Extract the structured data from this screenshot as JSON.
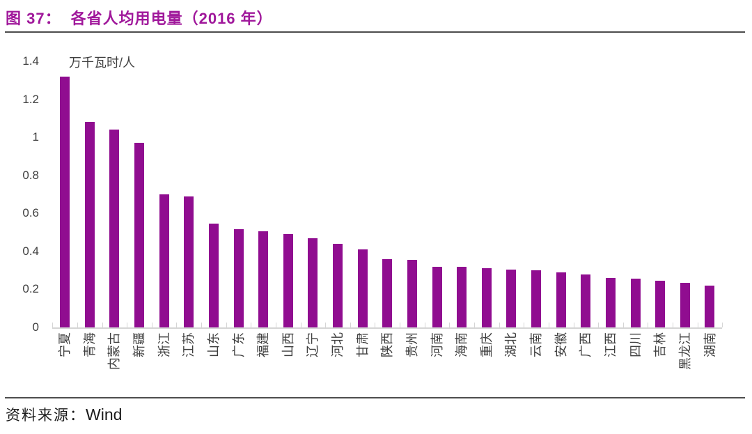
{
  "figure": {
    "title_prefix": "图 37：",
    "title_text": "各省人均用电量（2016 年）",
    "source_label": "资料来源：",
    "source_value": "Wind"
  },
  "colors": {
    "bar": "#900D90",
    "title": "#A0189B",
    "axis_text": "#3F3F3F",
    "axis_line": "#D5D5D5",
    "rule": "#4D4D4D",
    "source_text": "#1A1A1A"
  },
  "chart_data": {
    "type": "bar",
    "title": "各省人均用电量（2016 年）",
    "xlabel": "",
    "ylabel": "万千瓦时/人",
    "ylim": [
      0,
      1.4
    ],
    "ytick_labels": [
      "1.4",
      "1.2",
      "1",
      "0.8",
      "0.6",
      "0.4",
      "0.2",
      "0"
    ],
    "ytick_values": [
      1.4,
      1.2,
      1.0,
      0.8,
      0.6,
      0.4,
      0.2,
      0
    ],
    "grid": false,
    "legend": "none",
    "bar_color": "#900D90",
    "categories": [
      "宁夏",
      "青海",
      "内蒙古",
      "新疆",
      "浙江",
      "江苏",
      "山东",
      "广东",
      "福建",
      "山西",
      "辽宁",
      "河北",
      "甘肃",
      "陕西",
      "贵州",
      "河南",
      "海南",
      "重庆",
      "湖北",
      "云南",
      "安徽",
      "广西",
      "江西",
      "四川",
      "吉林",
      "黑龙江",
      "湖南"
    ],
    "values": [
      1.32,
      1.08,
      1.04,
      0.97,
      0.7,
      0.69,
      0.545,
      0.515,
      0.505,
      0.49,
      0.47,
      0.44,
      0.41,
      0.36,
      0.355,
      0.32,
      0.32,
      0.31,
      0.305,
      0.3,
      0.29,
      0.28,
      0.26,
      0.255,
      0.245,
      0.235,
      0.22
    ]
  }
}
